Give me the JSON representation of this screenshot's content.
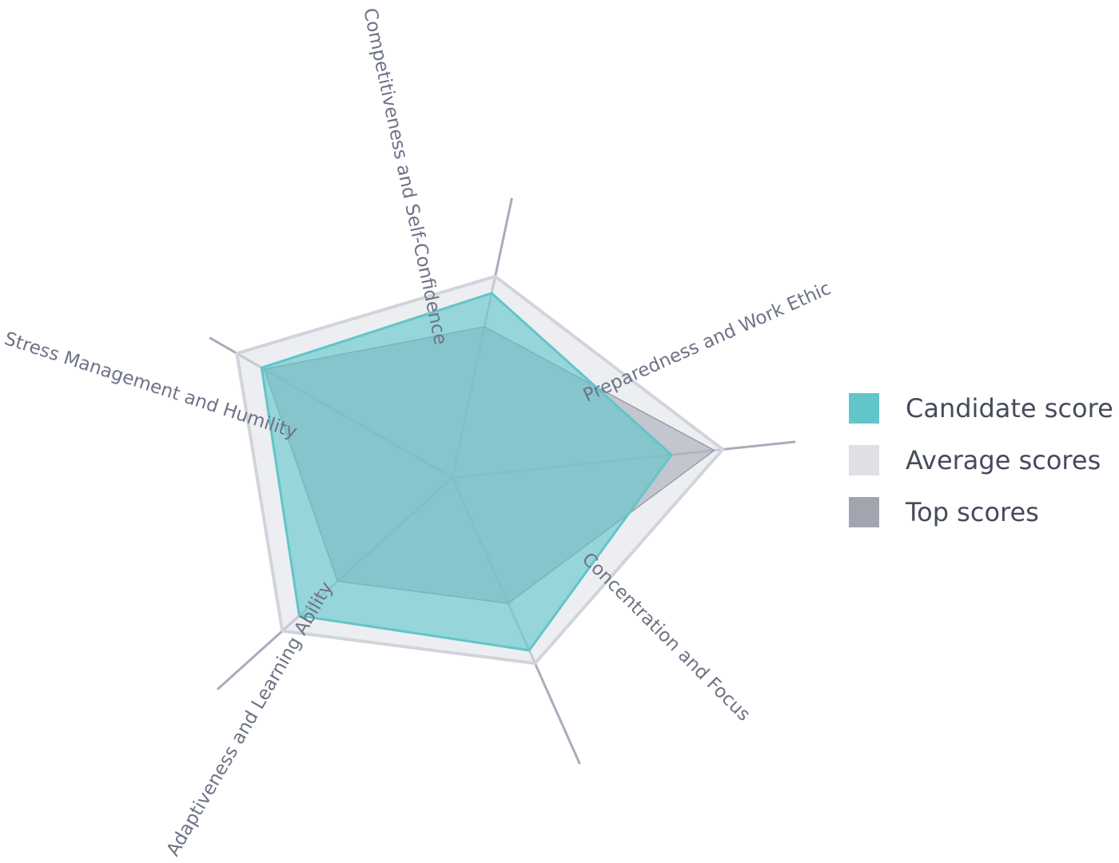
{
  "chart_data": {
    "type": "radar",
    "axes": [
      "Competitiveness and Self-Confidence",
      "Preparedness and Work Ethic",
      "Concentration and Focus",
      "Adaptiveness and Learning Ability",
      "Stress Management and Humility"
    ],
    "series": [
      {
        "name": "Average scores",
        "values": [
          0.72,
          0.95,
          0.71,
          0.8,
          0.87
        ],
        "color": "#dfe0e5"
      },
      {
        "name": "Top scores",
        "values": [
          0.54,
          0.92,
          0.48,
          0.54,
          0.76
        ],
        "color": "#a1a5b0"
      },
      {
        "name": "Candidate score",
        "values": [
          0.66,
          0.77,
          0.66,
          0.72,
          0.77
        ],
        "color": "#61c5ca"
      }
    ],
    "legend_position": "right",
    "grid": false
  },
  "legend": [
    {
      "label": "Candidate score",
      "color": "#61c5ca"
    },
    {
      "label": "Average scores",
      "color": "#dfe0e5"
    },
    {
      "label": "Top scores",
      "color": "#a1a5b0"
    }
  ]
}
